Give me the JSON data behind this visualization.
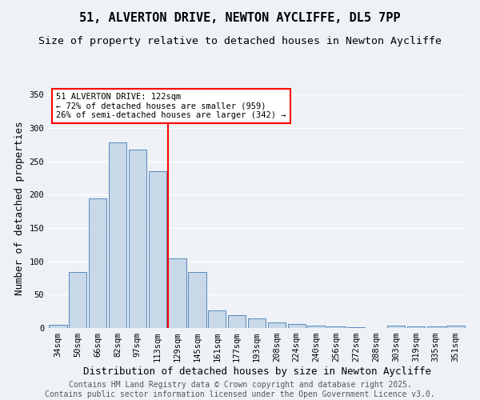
{
  "title": "51, ALVERTON DRIVE, NEWTON AYCLIFFE, DL5 7PP",
  "subtitle": "Size of property relative to detached houses in Newton Aycliffe",
  "xlabel": "Distribution of detached houses by size in Newton Aycliffe",
  "ylabel": "Number of detached properties",
  "categories": [
    "34sqm",
    "50sqm",
    "66sqm",
    "82sqm",
    "97sqm",
    "113sqm",
    "129sqm",
    "145sqm",
    "161sqm",
    "177sqm",
    "193sqm",
    "208sqm",
    "224sqm",
    "240sqm",
    "256sqm",
    "272sqm",
    "288sqm",
    "303sqm",
    "319sqm",
    "335sqm",
    "351sqm"
  ],
  "values": [
    5,
    84,
    195,
    278,
    268,
    235,
    104,
    84,
    27,
    19,
    14,
    8,
    6,
    4,
    2,
    1,
    0,
    4,
    2,
    3,
    4
  ],
  "bar_color": "#c8d8e8",
  "bar_edge_color": "#5588bb",
  "vline_x": 6,
  "vline_color": "red",
  "annotation_text": "51 ALVERTON DRIVE: 122sqm\n← 72% of detached houses are smaller (959)\n26% of semi-detached houses are larger (342) →",
  "annotation_box_color": "white",
  "annotation_box_edge": "red",
  "ylim": [
    0,
    360
  ],
  "yticks": [
    0,
    50,
    100,
    150,
    200,
    250,
    300,
    350
  ],
  "background_color": "#eef2f7",
  "grid_color": "white",
  "footer_line1": "Contains HM Land Registry data © Crown copyright and database right 2025.",
  "footer_line2": "Contains public sector information licensed under the Open Government Licence v3.0.",
  "title_fontsize": 11,
  "subtitle_fontsize": 9.5,
  "axis_label_fontsize": 9,
  "tick_fontsize": 7.5,
  "annotation_fontsize": 7.5,
  "footer_fontsize": 7
}
